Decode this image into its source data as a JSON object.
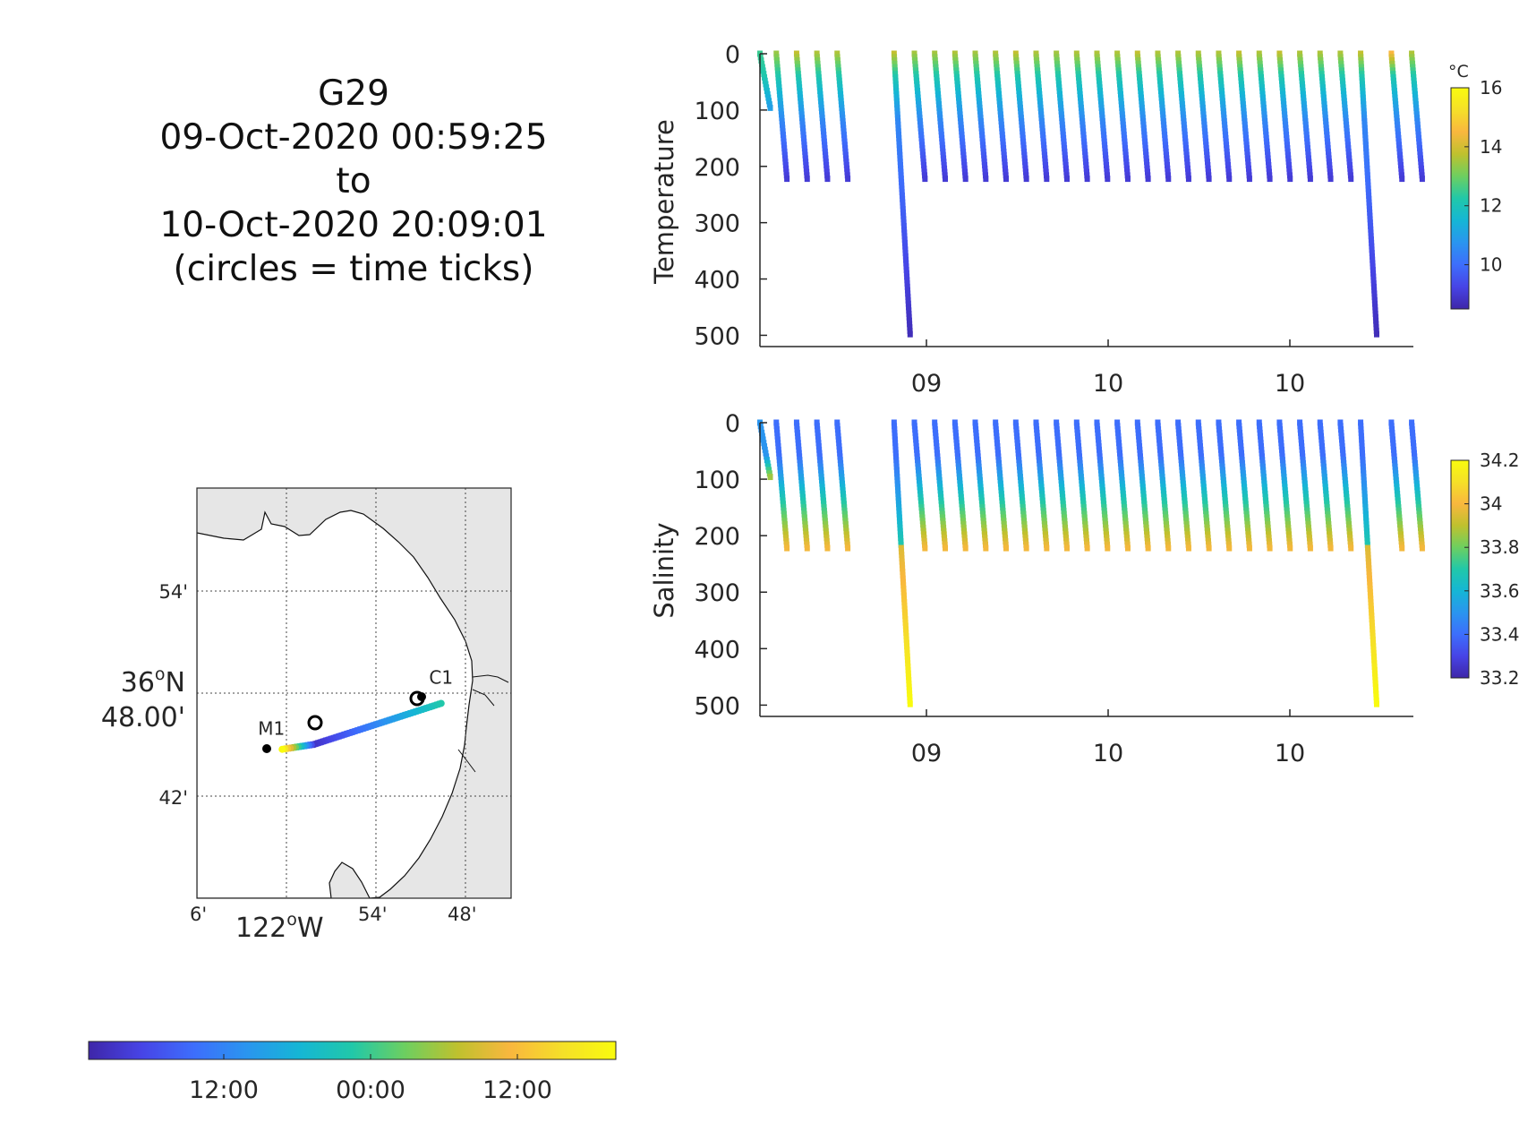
{
  "header": {
    "title_lines": [
      "G29",
      "09-Oct-2020 00:59:25",
      "to",
      "10-Oct-2020 20:09:01",
      "(circles = time ticks)"
    ]
  },
  "colormap": [
    "#3e26a8",
    "#4744e6",
    "#3d6efc",
    "#2a95ef",
    "#15b6d5",
    "#21c8a9",
    "#6dcf60",
    "#bfc12e",
    "#f9b73e",
    "#f5e028",
    "#f9fb0e"
  ],
  "chart_data": [
    {
      "type": "scatter",
      "title": "",
      "ylabel": "Temperature",
      "xlabel": "",
      "x_tick_labels": [
        "09",
        "10",
        "10"
      ],
      "y_ticks": [
        0,
        100,
        200,
        300,
        400,
        500
      ],
      "ylim": [
        0,
        520
      ],
      "y_reversed": true,
      "colorbar": {
        "unit": "°C",
        "ticks": [
          "10",
          "12",
          "14",
          "16"
        ],
        "range": [
          8.5,
          16.0
        ]
      },
      "profiles": {
        "x": [
          0.0,
          0.025,
          0.056,
          0.087,
          0.118,
          0.205,
          0.236,
          0.267,
          0.298,
          0.329,
          0.36,
          0.391,
          0.422,
          0.453,
          0.484,
          0.515,
          0.546,
          0.577,
          0.608,
          0.639,
          0.67,
          0.701,
          0.732,
          0.763,
          0.794,
          0.825,
          0.856,
          0.887,
          0.918,
          0.965,
          0.996
        ],
        "max_depth": [
          100,
          225,
          225,
          225,
          225,
          500,
          225,
          225,
          225,
          225,
          225,
          225,
          225,
          225,
          225,
          225,
          225,
          225,
          225,
          225,
          225,
          225,
          225,
          225,
          225,
          225,
          225,
          225,
          500,
          225,
          225
        ],
        "surface_value": [
          12.5,
          13.4,
          13.8,
          13.6,
          13.6,
          13.8,
          13.5,
          13.5,
          13.6,
          13.5,
          13.6,
          13.8,
          13.6,
          13.5,
          13.6,
          13.6,
          13.6,
          13.8,
          13.6,
          13.6,
          13.6,
          13.6,
          13.8,
          13.6,
          13.8,
          13.6,
          13.6,
          13.6,
          13.8,
          14.5,
          13.6
        ]
      }
    },
    {
      "type": "scatter",
      "title": "",
      "ylabel": "Salinity",
      "xlabel": "",
      "x_tick_labels": [
        "09",
        "10",
        "10"
      ],
      "y_ticks": [
        0,
        100,
        200,
        300,
        400,
        500
      ],
      "ylim": [
        0,
        520
      ],
      "y_reversed": true,
      "colorbar": {
        "ticks": [
          "33.2",
          "33.4",
          "33.6",
          "33.8",
          "34",
          "34.2"
        ],
        "range": [
          33.2,
          34.2
        ]
      },
      "profiles": {
        "x": [
          0.0,
          0.025,
          0.056,
          0.087,
          0.118,
          0.205,
          0.236,
          0.267,
          0.298,
          0.329,
          0.36,
          0.391,
          0.422,
          0.453,
          0.484,
          0.515,
          0.546,
          0.577,
          0.608,
          0.639,
          0.67,
          0.701,
          0.732,
          0.763,
          0.794,
          0.825,
          0.856,
          0.887,
          0.918,
          0.965,
          0.996
        ],
        "max_depth": [
          100,
          225,
          225,
          225,
          225,
          500,
          225,
          225,
          225,
          225,
          225,
          225,
          225,
          225,
          225,
          225,
          225,
          225,
          225,
          225,
          225,
          225,
          225,
          225,
          225,
          225,
          225,
          225,
          500,
          225,
          225
        ],
        "surface_value": [
          33.5,
          33.4,
          33.4,
          33.4,
          33.4,
          33.4,
          33.4,
          33.4,
          33.4,
          33.4,
          33.4,
          33.4,
          33.4,
          33.4,
          33.4,
          33.4,
          33.4,
          33.4,
          33.4,
          33.4,
          33.4,
          33.4,
          33.4,
          33.4,
          33.4,
          33.4,
          33.4,
          33.4,
          33.4,
          33.4,
          33.4
        ],
        "bottom_value": [
          33.9,
          34.0,
          34.0,
          34.0,
          34.0,
          34.2,
          34.0,
          34.0,
          34.0,
          34.0,
          34.0,
          34.0,
          34.0,
          34.0,
          34.0,
          34.0,
          34.0,
          34.0,
          34.0,
          34.0,
          34.0,
          34.0,
          34.0,
          34.0,
          34.0,
          34.0,
          34.0,
          34.0,
          34.2,
          34.0,
          34.0
        ]
      }
    }
  ],
  "map": {
    "lat_labels": [
      "54'",
      "42'"
    ],
    "lat_main_label_deg": "36",
    "lat_main_label_suffix": "N",
    "lat_main_label_min": "48.00'",
    "lon_labels": [
      "6'",
      "54'",
      "48'"
    ],
    "lon_main_label_deg": "122",
    "lon_main_label_suffix": "W",
    "stations": [
      {
        "name": "M1",
        "lon": -122.03,
        "lat": 36.75
      },
      {
        "name": "C1",
        "lon": -121.853,
        "lat": 36.8
      }
    ],
    "colorbar": {
      "ticks": [
        "12:00",
        "00:00",
        "12:00"
      ]
    }
  }
}
